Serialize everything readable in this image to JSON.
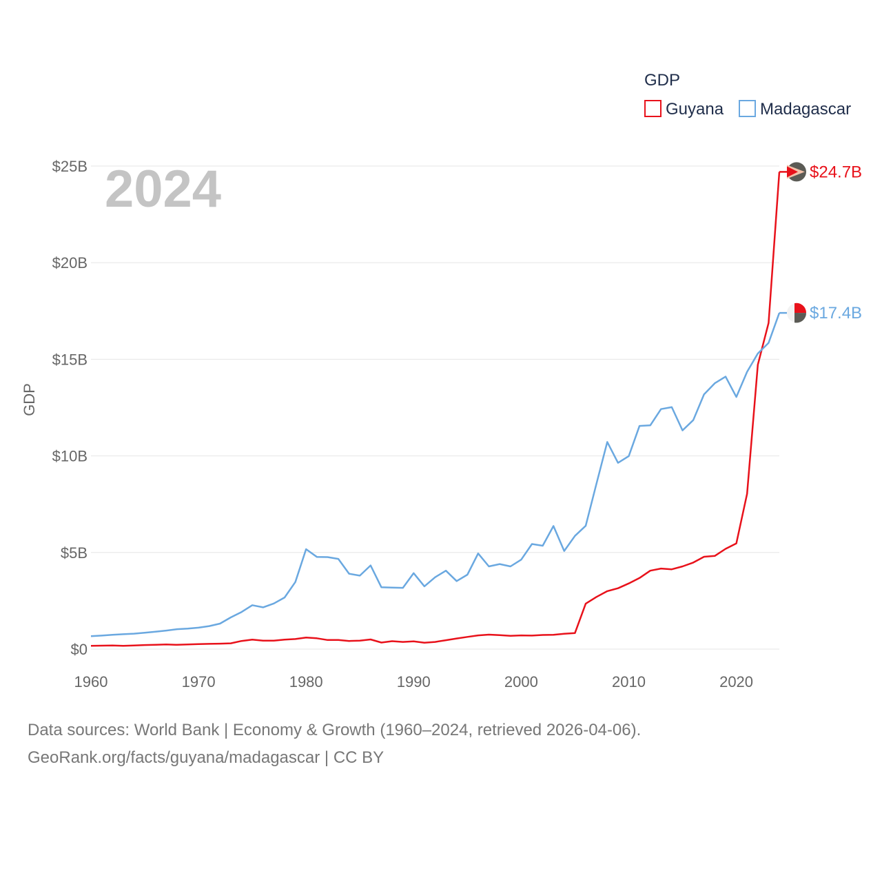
{
  "chart_data": {
    "type": "line",
    "title": "",
    "xlabel": "",
    "ylabel": "GDP",
    "xlim": [
      1960,
      2024
    ],
    "ylim": [
      0,
      25
    ],
    "x_ticks": [
      "1960",
      "1970",
      "1980",
      "1990",
      "2000",
      "2010",
      "2020"
    ],
    "y_ticks": [
      "$0",
      "$5B",
      "$10B",
      "$15B",
      "$20B",
      "$25B"
    ],
    "y_tick_values": [
      0,
      5,
      10,
      15,
      20,
      25
    ],
    "x_tick_values": [
      1960,
      1970,
      1980,
      1990,
      2000,
      2010,
      2020
    ],
    "year_label": "2024",
    "legend_title": "GDP",
    "units": "billions USD",
    "x": [
      1960,
      1961,
      1962,
      1963,
      1964,
      1965,
      1966,
      1967,
      1968,
      1969,
      1970,
      1971,
      1972,
      1973,
      1974,
      1975,
      1976,
      1977,
      1978,
      1979,
      1980,
      1981,
      1982,
      1983,
      1984,
      1985,
      1986,
      1987,
      1988,
      1989,
      1990,
      1991,
      1992,
      1993,
      1994,
      1995,
      1996,
      1997,
      1998,
      1999,
      2000,
      2001,
      2002,
      2003,
      2004,
      2005,
      2006,
      2007,
      2008,
      2009,
      2010,
      2011,
      2012,
      2013,
      2014,
      2015,
      2016,
      2017,
      2018,
      2019,
      2020,
      2021,
      2022,
      2023,
      2024
    ],
    "series": [
      {
        "name": "Guyana",
        "color": "#e8111a",
        "end_label": "$24.7B",
        "values": [
          0.17,
          0.18,
          0.19,
          0.17,
          0.19,
          0.21,
          0.22,
          0.24,
          0.22,
          0.24,
          0.26,
          0.27,
          0.28,
          0.3,
          0.42,
          0.49,
          0.44,
          0.44,
          0.49,
          0.52,
          0.6,
          0.56,
          0.47,
          0.47,
          0.42,
          0.44,
          0.5,
          0.34,
          0.41,
          0.37,
          0.4,
          0.33,
          0.37,
          0.46,
          0.55,
          0.63,
          0.71,
          0.75,
          0.72,
          0.69,
          0.71,
          0.7,
          0.73,
          0.74,
          0.79,
          0.83,
          2.35,
          2.7,
          3.0,
          3.15,
          3.4,
          3.68,
          4.06,
          4.17,
          4.13,
          4.28,
          4.48,
          4.78,
          4.82,
          5.19,
          5.47,
          8.04,
          14.72,
          16.88,
          24.7
        ]
      },
      {
        "name": "Madagascar",
        "color": "#6aa8e0",
        "end_label": "$17.4B",
        "values": [
          0.67,
          0.7,
          0.74,
          0.77,
          0.8,
          0.85,
          0.9,
          0.96,
          1.03,
          1.06,
          1.11,
          1.19,
          1.32,
          1.64,
          1.92,
          2.27,
          2.16,
          2.36,
          2.67,
          3.47,
          5.17,
          4.77,
          4.76,
          4.67,
          3.9,
          3.8,
          4.33,
          3.2,
          3.18,
          3.17,
          3.93,
          3.25,
          3.72,
          4.06,
          3.52,
          3.85,
          4.95,
          4.28,
          4.4,
          4.28,
          4.63,
          5.44,
          5.35,
          6.37,
          5.08,
          5.86,
          6.38,
          8.56,
          10.72,
          9.64,
          9.99,
          11.55,
          11.58,
          12.42,
          12.52,
          11.32,
          11.85,
          13.18,
          13.76,
          14.1,
          13.05,
          14.35,
          15.3,
          15.85,
          17.4
        ]
      }
    ]
  },
  "footer": {
    "line1": "Data sources: World Bank | Economy & Growth (1960–2024, retrieved 2026-04-06).",
    "line2": "GeoRank.org/facts/guyana/madagascar | CC BY"
  }
}
